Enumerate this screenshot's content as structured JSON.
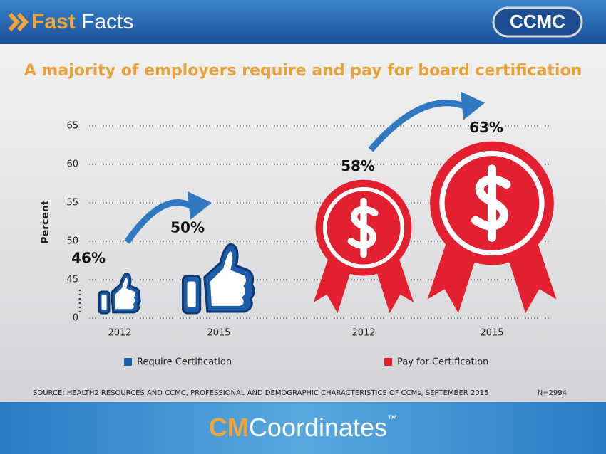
{
  "header": {
    "section_bold": "Fast",
    "section": "Facts",
    "logo": "CCMC"
  },
  "footer": {
    "brand_bold": "CM",
    "brand": "Coordinates",
    "trademark": "™"
  },
  "chart_data": {
    "type": "icon-bar",
    "title": "A majority of employers require and pay for board certification",
    "ylabel": "Percent",
    "categories": [
      "2012",
      "2015"
    ],
    "series": [
      {
        "name": "Require Certification",
        "color": "#1d5ca8",
        "values": [
          46,
          50
        ],
        "value_labels": [
          "46%",
          "50%"
        ]
      },
      {
        "name": "Pay for Certification",
        "color": "#e3202f",
        "values": [
          58,
          63
        ],
        "value_labels": [
          "58%",
          "63%"
        ]
      }
    ],
    "ylim": [
      0,
      65
    ],
    "yticks": [
      0,
      45,
      50,
      55,
      60,
      65
    ],
    "axis_break": true,
    "grid": true,
    "source": "SOURCE: HEALTH2 RESOURCES AND CCMC, PROFESSIONAL AND DEMOGRAPHIC CHARACTERISTICS OF CCMs, SEPTEMBER 2015",
    "note": "N=2994"
  }
}
